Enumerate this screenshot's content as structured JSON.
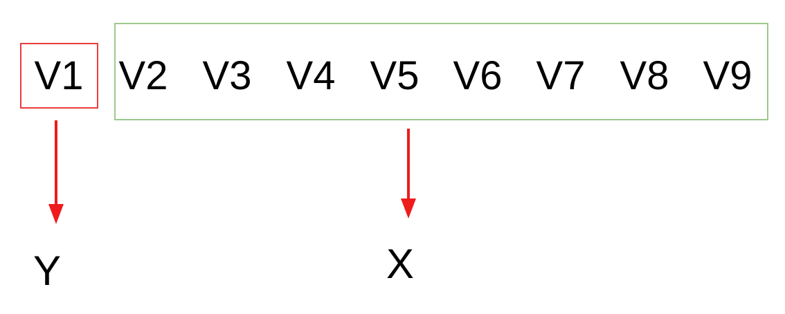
{
  "variables": {
    "target": "V1",
    "features": [
      "V2",
      "V3",
      "V4",
      "V5",
      "V6",
      "V7",
      "V8",
      "V9"
    ]
  },
  "outputs": {
    "target_label": "Y",
    "features_label": "X"
  },
  "colors": {
    "target_box": "#ea3b3b",
    "features_box": "#9bc98b",
    "arrow": "#ee1c1c"
  }
}
